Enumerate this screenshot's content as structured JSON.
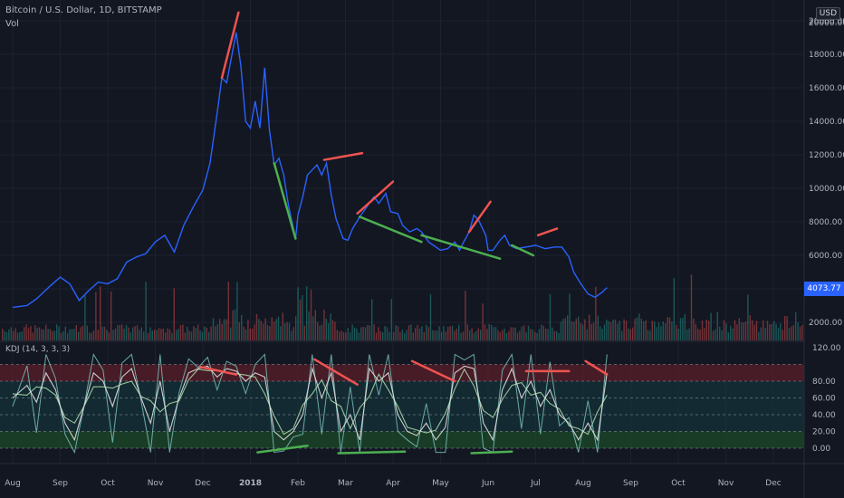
{
  "header": {
    "title": "Bitcoin / U.S. Dollar, 1D, BITSTAMP",
    "volume_label": "Vol",
    "currency": "USD",
    "last_price": "4073.77"
  },
  "indicator": {
    "label": "KDJ (14, 3, 3, 3)"
  },
  "colors": {
    "background": "#131722",
    "price_line": "#2962ff",
    "bull_volume": "#26a69a",
    "bear_volume": "#ef5350",
    "resistance_line": "#ef5350",
    "support_line": "#4caf50",
    "overbought_zone": "#5a1f2a",
    "mid_zone": "#153a3f",
    "oversold_zone": "#1c4a2a",
    "k_line": "#e0e0e0",
    "d_line": "#a5d6a7",
    "j_line": "#80cbc4"
  },
  "chart_data": [
    {
      "type": "line",
      "name": "BTC/USD price",
      "x_axis_labels": [
        "Aug",
        "Sep",
        "Oct",
        "Nov",
        "Dec",
        "2018",
        "Feb",
        "Mar",
        "Apr",
        "May",
        "Jun",
        "Jul",
        "Aug",
        "Sep",
        "Oct",
        "Nov",
        "Dec"
      ],
      "y_tick_labels": [
        "2000.00",
        "4000.00",
        "6000.00",
        "8000.00",
        "10000.00",
        "12000.00",
        "14000.00",
        "16000.00",
        "18000.00",
        "20000.00"
      ],
      "ylim": [
        1000,
        21000
      ],
      "x_unit": "months since Aug 2017",
      "points": [
        [
          0,
          2900
        ],
        [
          0.3,
          3000
        ],
        [
          0.5,
          3400
        ],
        [
          0.8,
          4200
        ],
        [
          1.0,
          4700
        ],
        [
          1.2,
          4300
        ],
        [
          1.4,
          3300
        ],
        [
          1.6,
          3900
        ],
        [
          1.8,
          4400
        ],
        [
          2.0,
          4300
        ],
        [
          2.2,
          4600
        ],
        [
          2.4,
          5600
        ],
        [
          2.6,
          5900
        ],
        [
          2.8,
          6100
        ],
        [
          3.0,
          6800
        ],
        [
          3.2,
          7200
        ],
        [
          3.4,
          6200
        ],
        [
          3.6,
          7800
        ],
        [
          3.8,
          8900
        ],
        [
          4.0,
          9900
        ],
        [
          4.15,
          11500
        ],
        [
          4.3,
          14500
        ],
        [
          4.4,
          16600
        ],
        [
          4.5,
          16300
        ],
        [
          4.6,
          17800
        ],
        [
          4.7,
          19300
        ],
        [
          4.8,
          17300
        ],
        [
          4.9,
          14000
        ],
        [
          5.0,
          13600
        ],
        [
          5.1,
          15200
        ],
        [
          5.2,
          13600
        ],
        [
          5.3,
          17200
        ],
        [
          5.4,
          13500
        ],
        [
          5.5,
          11400
        ],
        [
          5.6,
          11800
        ],
        [
          5.7,
          10800
        ],
        [
          5.8,
          9000
        ],
        [
          5.95,
          7000
        ],
        [
          6.0,
          8400
        ],
        [
          6.1,
          9500
        ],
        [
          6.2,
          10800
        ],
        [
          6.3,
          11100
        ],
        [
          6.4,
          11400
        ],
        [
          6.5,
          10800
        ],
        [
          6.6,
          11500
        ],
        [
          6.7,
          9600
        ],
        [
          6.8,
          8200
        ],
        [
          6.95,
          7000
        ],
        [
          7.05,
          6900
        ],
        [
          7.15,
          7600
        ],
        [
          7.3,
          8300
        ],
        [
          7.45,
          8900
        ],
        [
          7.6,
          9500
        ],
        [
          7.7,
          9100
        ],
        [
          7.85,
          9700
        ],
        [
          7.95,
          8600
        ],
        [
          8.1,
          8500
        ],
        [
          8.2,
          7800
        ],
        [
          8.35,
          7400
        ],
        [
          8.5,
          7600
        ],
        [
          8.6,
          7400
        ],
        [
          8.75,
          6800
        ],
        [
          8.9,
          6500
        ],
        [
          9.0,
          6300
        ],
        [
          9.15,
          6400
        ],
        [
          9.3,
          6800
        ],
        [
          9.4,
          6300
        ],
        [
          9.45,
          6600
        ],
        [
          9.6,
          7400
        ],
        [
          9.7,
          8400
        ],
        [
          9.8,
          8100
        ],
        [
          9.95,
          7200
        ],
        [
          10.0,
          6300
        ],
        [
          10.1,
          6300
        ],
        [
          10.25,
          6900
        ],
        [
          10.35,
          7200
        ],
        [
          10.45,
          6600
        ],
        [
          10.6,
          6400
        ],
        [
          10.8,
          6500
        ],
        [
          11.0,
          6600
        ],
        [
          11.2,
          6400
        ],
        [
          11.4,
          6500
        ],
        [
          11.55,
          6500
        ],
        [
          11.7,
          5900
        ],
        [
          11.8,
          5000
        ],
        [
          11.95,
          4300
        ],
        [
          12.1,
          3700
        ],
        [
          12.25,
          3500
        ],
        [
          12.4,
          3800
        ],
        [
          12.5,
          4073
        ]
      ]
    },
    {
      "type": "bar",
      "name": "Volume",
      "note": "relative daily volume, alternating up/down days"
    },
    {
      "type": "line",
      "name": "KDJ oscillator",
      "y_tick_labels": [
        "0.00",
        "20.00",
        "40.00",
        "60.00",
        "80.00",
        "120.00"
      ],
      "ylim": [
        -10,
        120
      ],
      "zones": {
        "oversold": [
          0,
          20
        ],
        "overbought": [
          80,
          100
        ]
      },
      "series_K": [
        [
          0,
          60
        ],
        [
          0.3,
          75
        ],
        [
          0.5,
          55
        ],
        [
          0.7,
          90
        ],
        [
          0.9,
          70
        ],
        [
          1.1,
          30
        ],
        [
          1.3,
          10
        ],
        [
          1.5,
          50
        ],
        [
          1.7,
          90
        ],
        [
          1.9,
          80
        ],
        [
          2.1,
          50
        ],
        [
          2.3,
          85
        ],
        [
          2.5,
          95
        ],
        [
          2.7,
          60
        ],
        [
          2.9,
          30
        ],
        [
          3.1,
          80
        ],
        [
          3.3,
          20
        ],
        [
          3.5,
          60
        ],
        [
          3.7,
          90
        ],
        [
          3.9,
          95
        ],
        [
          4.1,
          98
        ],
        [
          4.3,
          85
        ],
        [
          4.5,
          95
        ],
        [
          4.7,
          92
        ],
        [
          4.9,
          80
        ],
        [
          5.1,
          90
        ],
        [
          5.3,
          85
        ],
        [
          5.5,
          20
        ],
        [
          5.7,
          10
        ],
        [
          5.9,
          20
        ],
        [
          6.1,
          40
        ],
        [
          6.3,
          95
        ],
        [
          6.5,
          60
        ],
        [
          6.7,
          90
        ],
        [
          6.9,
          20
        ],
        [
          7.1,
          40
        ],
        [
          7.3,
          10
        ],
        [
          7.5,
          95
        ],
        [
          7.7,
          80
        ],
        [
          7.9,
          90
        ],
        [
          8.1,
          40
        ],
        [
          8.3,
          20
        ],
        [
          8.5,
          15
        ],
        [
          8.7,
          30
        ],
        [
          8.9,
          10
        ],
        [
          9.1,
          25
        ],
        [
          9.3,
          90
        ],
        [
          9.5,
          98
        ],
        [
          9.7,
          95
        ],
        [
          9.9,
          30
        ],
        [
          10.1,
          10
        ],
        [
          10.3,
          70
        ],
        [
          10.5,
          95
        ],
        [
          10.7,
          60
        ],
        [
          10.9,
          80
        ],
        [
          11.1,
          50
        ],
        [
          11.3,
          70
        ],
        [
          11.5,
          40
        ],
        [
          11.7,
          30
        ],
        [
          11.9,
          10
        ],
        [
          12.1,
          30
        ],
        [
          12.3,
          10
        ],
        [
          12.5,
          90
        ]
      ]
    }
  ]
}
